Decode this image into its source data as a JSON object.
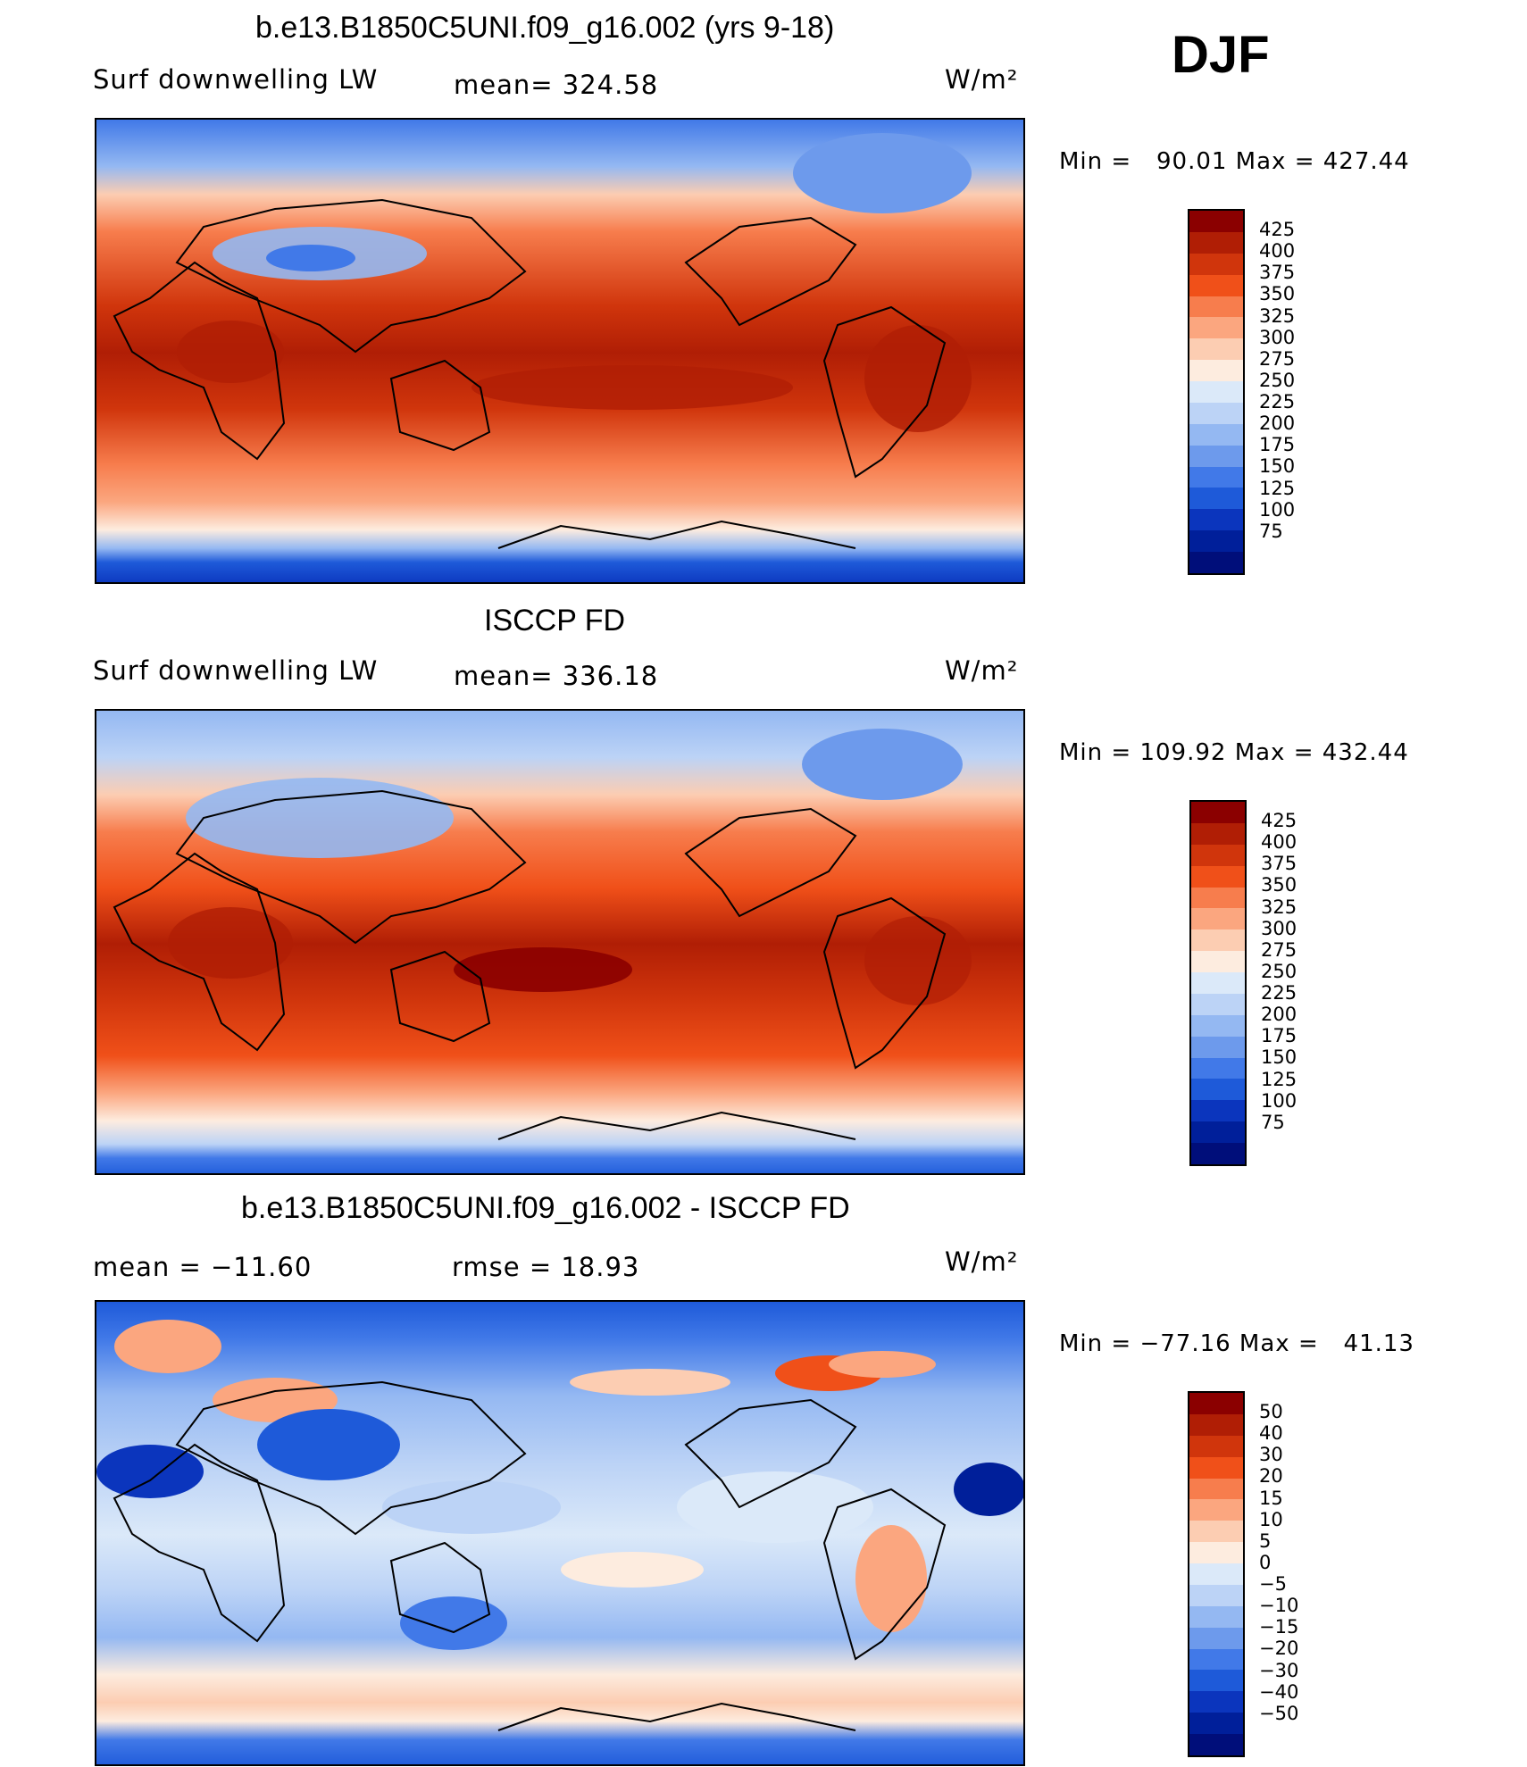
{
  "season": "DJF",
  "panels": [
    {
      "title": "b.e13.B1850C5UNI.f09_g16.002 (yrs 9-18)",
      "left_label": "Surf downwelling LW",
      "center_label": "mean= 324.58",
      "units": "W/m²",
      "range_text": "Min =   90.01 Max = 427.44",
      "kind": "model"
    },
    {
      "title": "ISCCP FD",
      "left_label": "Surf downwelling LW",
      "center_label": "mean= 336.18",
      "units": "W/m²",
      "range_text": "Min = 109.92 Max = 432.44",
      "kind": "obs"
    },
    {
      "title": "b.e13.B1850C5UNI.f09_g16.002 - ISCCP FD",
      "left_label": "mean = −11.60",
      "center_label": "rmse =   18.93",
      "units": "W/m²",
      "range_text": "Min = −77.16 Max =   41.13",
      "kind": "diff"
    }
  ],
  "colorbars": {
    "absolute": {
      "labels": [
        "425",
        "400",
        "375",
        "350",
        "325",
        "300",
        "275",
        "250",
        "225",
        "200",
        "175",
        "150",
        "125",
        "100",
        "75"
      ],
      "colors": [
        "#8b0000",
        "#b01e05",
        "#d0350c",
        "#f05019",
        "#f77d4d",
        "#fba67f",
        "#fccdb2",
        "#fdecdf",
        "#dbe9f9",
        "#bcd3f6",
        "#94b8f2",
        "#6d9aec",
        "#4179e8",
        "#1e5ad9",
        "#0b35bd",
        "#001f9a",
        "#000e7a"
      ]
    },
    "difference": {
      "labels": [
        "50",
        "40",
        "30",
        "20",
        "15",
        "10",
        "5",
        "0",
        "−5",
        "−10",
        "−15",
        "−20",
        "−30",
        "−40",
        "−50"
      ],
      "colors": [
        "#8b0000",
        "#b01e05",
        "#d0350c",
        "#f05019",
        "#f77d4d",
        "#fba67f",
        "#fccdb2",
        "#fdecdf",
        "#dbe9f9",
        "#bcd3f6",
        "#94b8f2",
        "#6d9aec",
        "#4179e8",
        "#1e5ad9",
        "#0b35bd",
        "#001f9a",
        "#000e7a"
      ]
    }
  }
}
